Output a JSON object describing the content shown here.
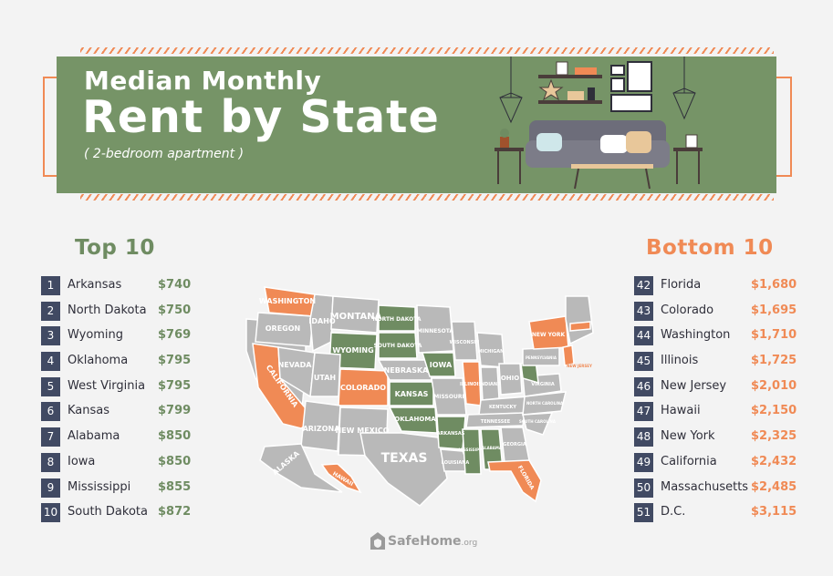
{
  "header": {
    "title_line1": "Median Monthly",
    "title_line2": "Rent by State",
    "subtitle": "( 2-bedroom apartment )"
  },
  "top10": {
    "heading": "Top 10",
    "color": "#6f8c62",
    "items": [
      {
        "rank": "1",
        "state": "Arkansas",
        "rent": "$740"
      },
      {
        "rank": "2",
        "state": "North Dakota",
        "rent": "$750"
      },
      {
        "rank": "3",
        "state": "Wyoming",
        "rent": "$769"
      },
      {
        "rank": "4",
        "state": "Oklahoma",
        "rent": "$795"
      },
      {
        "rank": "5",
        "state": "West Virginia",
        "rent": "$795"
      },
      {
        "rank": "6",
        "state": "Kansas",
        "rent": "$799"
      },
      {
        "rank": "7",
        "state": "Alabama",
        "rent": "$850"
      },
      {
        "rank": "8",
        "state": "Iowa",
        "rent": "$850"
      },
      {
        "rank": "9",
        "state": "Mississippi",
        "rent": "$855"
      },
      {
        "rank": "10",
        "state": "South Dakota",
        "rent": "$872"
      }
    ]
  },
  "bottom10": {
    "heading": "Bottom 10",
    "color": "#f08a55",
    "items": [
      {
        "rank": "42",
        "state": "Florida",
        "rent": "$1,680"
      },
      {
        "rank": "43",
        "state": "Colorado",
        "rent": "$1,695"
      },
      {
        "rank": "44",
        "state": "Washington",
        "rent": "$1,710"
      },
      {
        "rank": "45",
        "state": "Illinois",
        "rent": "$1,725"
      },
      {
        "rank": "46",
        "state": "New Jersey",
        "rent": "$2,010"
      },
      {
        "rank": "47",
        "state": "Hawaii",
        "rent": "$2,150"
      },
      {
        "rank": "48",
        "state": "New York",
        "rent": "$2,325"
      },
      {
        "rank": "49",
        "state": "California",
        "rent": "$2,432"
      },
      {
        "rank": "50",
        "state": "Massachusetts",
        "rent": "$2,485"
      },
      {
        "rank": "51",
        "state": "D.C.",
        "rent": "$3,115"
      }
    ]
  },
  "map": {
    "labels": {
      "washington": "WASHINGTON",
      "oregon": "OREGON",
      "california": "CALIFORNIA",
      "nevada": "NEVADA",
      "idaho": "IDAHO",
      "montana": "MONTANA",
      "wyoming": "WYOMING",
      "utah": "UTAH",
      "colorado": "COLORADO",
      "arizona": "ARIZONA",
      "new_mexico": "NEW MEXICO",
      "north_dakota": "NORTH DAKOTA",
      "south_dakota": "SOUTH DAKOTA",
      "nebraska": "NEBRASKA",
      "kansas": "KANSAS",
      "oklahoma": "OKLAHOMA",
      "texas": "TEXAS",
      "minnesota": "MINNESOTA",
      "iowa": "IOWA",
      "missouri": "MISSOURI",
      "arkansas": "ARKANSAS",
      "louisiana": "LOUISIANA",
      "wisconsin": "WISCONSIN",
      "illinois": "ILLINOIS",
      "michigan": "MICHIGAN",
      "indiana": "INDIANA",
      "ohio": "OHIO",
      "kentucky": "KENTUCKY",
      "tennessee": "TENNESSEE",
      "mississippi": "MISSISSIPPI",
      "alabama": "ALABAMA",
      "georgia": "GEORGIA",
      "florida": "FLORIDA",
      "new_york": "NEW YORK",
      "pennsylvania": "PENNSYLVANIA",
      "virginia": "VIRGINIA",
      "north_carolina": "NORTH CAROLINA",
      "south_carolina": "SOUTH CAROLINA",
      "new_jersey": "NEW JERSEY",
      "alaska": "ALASKA",
      "hawaii": "HAWAII"
    },
    "colors": {
      "top": "#6f8c62",
      "bottom": "#f08a55",
      "other": "#b9b9b9"
    }
  },
  "footer": {
    "brand": "SafeHome",
    "brand_suffix": ".org",
    "icon": "house-shield-icon"
  }
}
